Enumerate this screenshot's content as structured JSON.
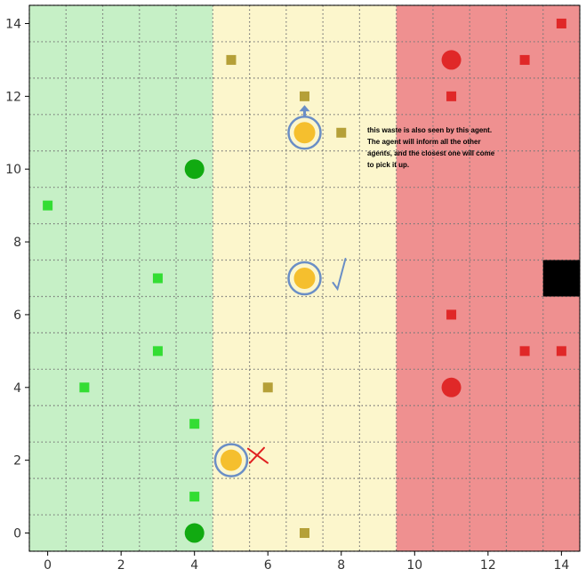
{
  "chart_data": {
    "type": "scatter",
    "xlim": [
      -0.5,
      14.5
    ],
    "ylim": [
      -0.5,
      14.5
    ],
    "x_ticks": [
      "0",
      "2",
      "4",
      "6",
      "8",
      "10",
      "12",
      "14"
    ],
    "y_ticks": [
      "0",
      "2",
      "4",
      "6",
      "8",
      "10",
      "12",
      "14"
    ],
    "grid": "dotted",
    "zones": [
      {
        "name": "green",
        "x_range": [
          -0.5,
          4.5
        ],
        "color": "#c6f0c6"
      },
      {
        "name": "yellow",
        "x_range": [
          4.5,
          9.5
        ],
        "color": "#fcf6cc"
      },
      {
        "name": "red",
        "x_range": [
          9.5,
          14.5
        ],
        "color": "#ef9090"
      }
    ],
    "green_waste": [
      [
        0,
        9
      ],
      [
        1,
        4
      ],
      [
        3,
        7
      ],
      [
        3,
        5
      ],
      [
        4,
        3
      ],
      [
        4,
        1
      ]
    ],
    "yellow_waste": [
      [
        5,
        13
      ],
      [
        7,
        12
      ],
      [
        8,
        11
      ],
      [
        6,
        4
      ],
      [
        7,
        0
      ]
    ],
    "red_waste": [
      [
        14,
        14
      ],
      [
        13,
        13
      ],
      [
        11,
        12
      ],
      [
        11,
        6
      ],
      [
        13,
        5
      ],
      [
        14,
        5
      ]
    ],
    "green_agents": [
      [
        4,
        10
      ],
      [
        4,
        0
      ]
    ],
    "yellow_agents": [
      [
        7,
        11
      ],
      [
        7,
        7
      ],
      [
        5,
        2
      ]
    ],
    "red_agents": [
      [
        11,
        13
      ],
      [
        11,
        4
      ]
    ],
    "disposal_zone": [
      14,
      7
    ],
    "colors": {
      "green_waste": "#33dd33",
      "yellow_waste": "#b5a038",
      "red_waste": "#e02828",
      "green_agent": "#11aa11",
      "yellow_agent": "#f5bf2e",
      "agent_ring": "#6a8ec6",
      "red_agent": "#e02828",
      "disposal": "#000000"
    },
    "annotation": {
      "lines": [
        "this waste is also seen by this agent.",
        "The agent will inform all the other",
        "agents, and the closest one will come",
        "to pick it up."
      ]
    },
    "markers": {
      "arrow_on_agent": [
        7,
        11
      ],
      "checkmark_on_agent": [
        7,
        7
      ],
      "cross_on_agent": [
        5,
        2
      ]
    }
  }
}
